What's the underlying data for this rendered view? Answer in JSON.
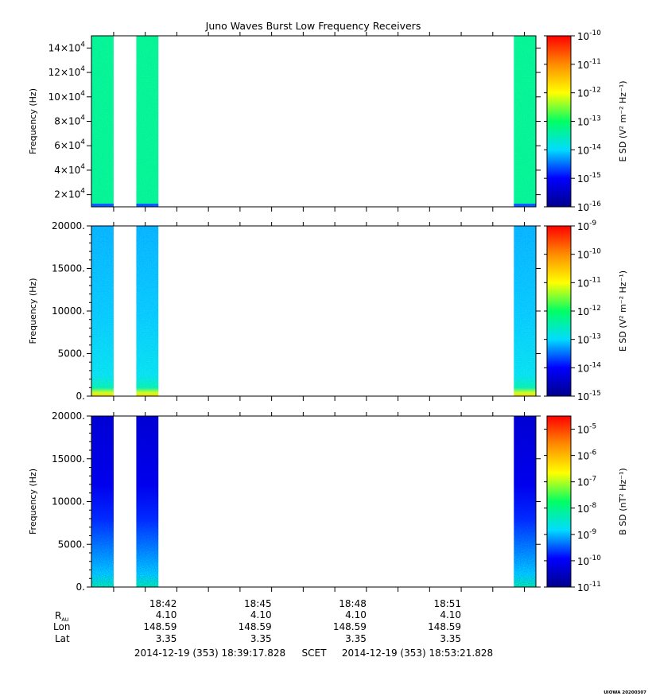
{
  "title": "Juno Waves Burst Low Frequency Receivers",
  "chart_data": [
    {
      "type": "heatmap",
      "panel": "top",
      "ylabel": "Frequency (Hz)",
      "y_scale_sci": true,
      "yticks": [
        {
          "value": 20000,
          "mant": "2",
          "exp": "4"
        },
        {
          "value": 40000,
          "mant": "4",
          "exp": "4"
        },
        {
          "value": 60000,
          "mant": "6",
          "exp": "4"
        },
        {
          "value": 80000,
          "mant": "8",
          "exp": "4"
        },
        {
          "value": 100000,
          "mant": "10",
          "exp": "4"
        },
        {
          "value": 120000,
          "mant": "12",
          "exp": "4"
        },
        {
          "value": 140000,
          "mant": "14",
          "exp": "4"
        }
      ],
      "ylim": [
        10000,
        150000
      ],
      "colorbar_label": "E SD (V² m⁻² Hz⁻¹)",
      "colorbar_ticks": [
        "-10",
        "-11",
        "-12",
        "-13",
        "-14",
        "-15",
        "-16"
      ],
      "colorbar_range": [
        -16,
        -10
      ],
      "bursts": [
        {
          "start": "18:39:18",
          "end": "18:40:00",
          "level": -13.3
        },
        {
          "start": "18:40:43",
          "end": "18:41:25",
          "level": -13.3
        },
        {
          "start": "18:52:40",
          "end": "18:53:22",
          "level": -13.3
        }
      ]
    },
    {
      "type": "heatmap",
      "panel": "middle",
      "ylabel": "Frequency (Hz)",
      "yticks": [
        {
          "value": 0,
          "label": "0."
        },
        {
          "value": 5000,
          "label": "5000."
        },
        {
          "value": 10000,
          "label": "10000."
        },
        {
          "value": 15000,
          "label": "15000."
        },
        {
          "value": 20000,
          "label": "20000."
        }
      ],
      "ylim": [
        0,
        20000
      ],
      "colorbar_label": "E SD (V² m⁻² Hz⁻¹)",
      "colorbar_ticks": [
        "-9",
        "-10",
        "-11",
        "-12",
        "-13",
        "-14",
        "-15"
      ],
      "colorbar_range": [
        -15,
        -9
      ],
      "bursts": [
        {
          "start": "18:39:18",
          "end": "18:40:00",
          "level": -13.1
        },
        {
          "start": "18:40:43",
          "end": "18:41:25",
          "level": -13.1
        },
        {
          "start": "18:52:40",
          "end": "18:53:22",
          "level": -13.1
        }
      ]
    },
    {
      "type": "heatmap",
      "panel": "bottom",
      "ylabel": "Frequency (Hz)",
      "yticks": [
        {
          "value": 0,
          "label": "0."
        },
        {
          "value": 5000,
          "label": "5000."
        },
        {
          "value": 10000,
          "label": "10000."
        },
        {
          "value": 15000,
          "label": "15000."
        },
        {
          "value": 20000,
          "label": "20000."
        }
      ],
      "ylim": [
        0,
        20000
      ],
      "colorbar_label": "B SD (nT² Hz⁻¹)",
      "colorbar_ticks": [
        "-5",
        "-6",
        "-7",
        "-8",
        "-9",
        "-10",
        "-11"
      ],
      "colorbar_range": [
        -11,
        -4.5
      ],
      "bursts": [
        {
          "start": "18:39:18",
          "end": "18:40:00",
          "level": -10.2
        },
        {
          "start": "18:40:43",
          "end": "18:41:25",
          "level": -10.2
        },
        {
          "start": "18:52:40",
          "end": "18:53:22",
          "level": -10.2
        }
      ]
    }
  ],
  "time_axis": {
    "range": [
      "18:39:17.828",
      "18:53:21.828"
    ],
    "labeled_ticks": [
      "18:42",
      "18:45",
      "18:48",
      "18:51"
    ],
    "minor_ticks": [
      "18:40",
      "18:41",
      "18:43",
      "18:44",
      "18:46",
      "18:47",
      "18:49",
      "18:50",
      "18:52",
      "18:53"
    ]
  },
  "ephemeris": {
    "row_labels": {
      "rau_main": "R",
      "rau_sub": "AU",
      "lon": "Lon",
      "lat": "Lat"
    },
    "rau": [
      "4.10",
      "4.10",
      "4.10",
      "4.10"
    ],
    "lon": [
      "148.59",
      "148.59",
      "148.59",
      "148.59"
    ],
    "lat": [
      "3.35",
      "3.35",
      "3.35",
      "3.35"
    ]
  },
  "footer": {
    "start": "2014-12-19 (353) 18:39:17.828",
    "frame": "SCET",
    "end": "2014-12-19 (353) 18:53:21.828"
  },
  "stamp": "UIOWA 20200307",
  "colors": {
    "colormap": [
      "#00008c",
      "#0000ff",
      "#00dcff",
      "#00ff64",
      "#ffff00",
      "#ff8c00",
      "#ff0000"
    ]
  }
}
